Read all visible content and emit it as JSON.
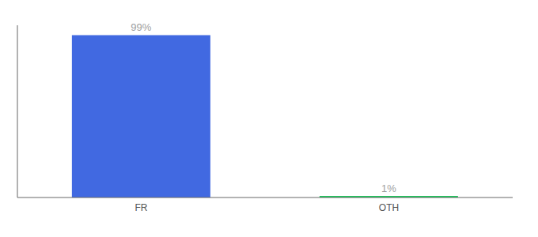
{
  "chart_data": {
    "type": "bar",
    "categories": [
      "FR",
      "OTH"
    ],
    "values": [
      99,
      1
    ],
    "value_labels": [
      "99%",
      "1%"
    ],
    "colors": [
      "#4169e1",
      "#22c55e"
    ],
    "ylim": [
      0,
      105
    ],
    "data_labels": true,
    "tick_labels": "x",
    "grid": false
  }
}
